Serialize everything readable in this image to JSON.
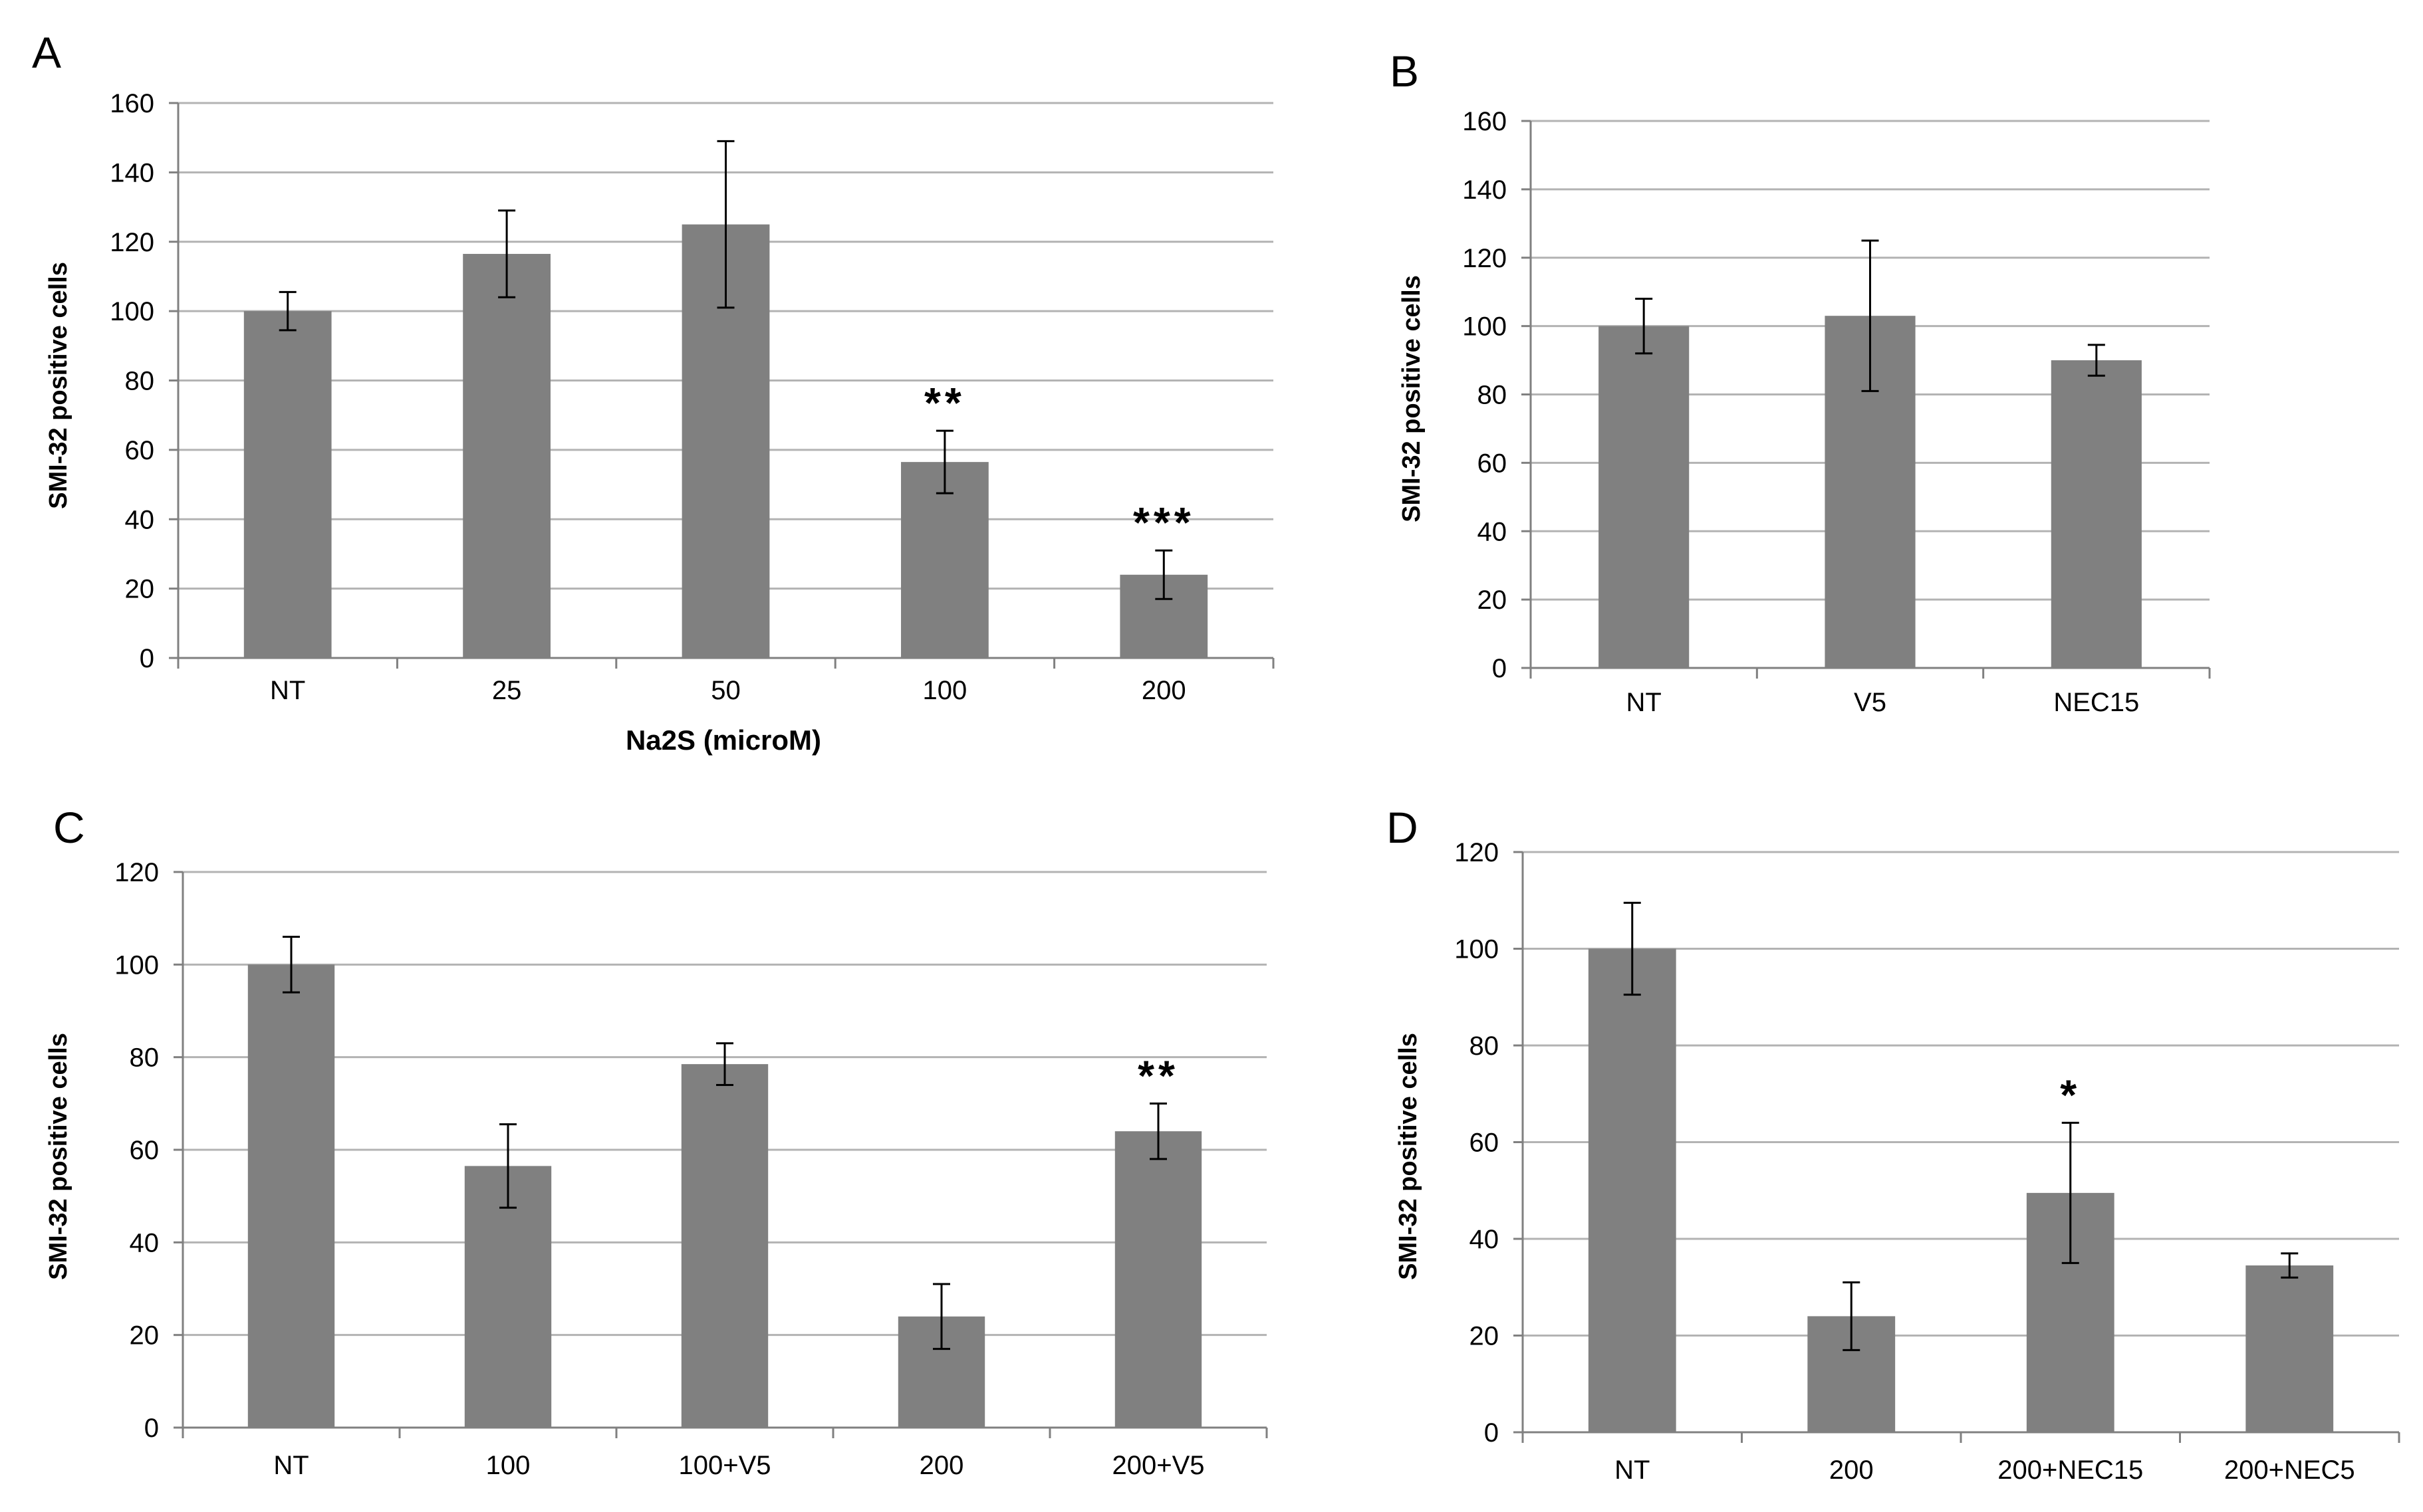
{
  "chart_data": [
    {
      "type": "bar",
      "panel": "A",
      "categories": [
        "NT",
        "25",
        "50",
        "100",
        "200"
      ],
      "values": [
        100,
        116.5,
        125,
        56.5,
        24
      ],
      "errors": [
        5.5,
        12.5,
        24,
        9,
        7
      ],
      "annotations": [
        "",
        "",
        "",
        "**",
        "***"
      ],
      "xlabel": "Na2S (microM)",
      "ylabel": "SMI-32 positive cells",
      "ylim": [
        0,
        160
      ],
      "yticks": [
        0,
        20,
        40,
        60,
        80,
        100,
        120,
        140,
        160
      ],
      "grid": true
    },
    {
      "type": "bar",
      "panel": "B",
      "categories": [
        "NT",
        "V5",
        "NEC15"
      ],
      "values": [
        100,
        103,
        90
      ],
      "errors": [
        8,
        22,
        4.5
      ],
      "annotations": [
        "",
        "",
        ""
      ],
      "xlabel": "",
      "ylabel": "SMI-32 positive cells",
      "ylim": [
        0,
        160
      ],
      "yticks": [
        0,
        20,
        40,
        60,
        80,
        100,
        120,
        140,
        160
      ],
      "grid": true
    },
    {
      "type": "bar",
      "panel": "C",
      "categories": [
        "NT",
        "100",
        "100+V5",
        "200",
        "200+V5"
      ],
      "values": [
        100,
        56.5,
        78.5,
        24,
        64
      ],
      "errors": [
        6,
        9,
        4.5,
        7,
        6
      ],
      "annotations": [
        "",
        "",
        "",
        "",
        "**"
      ],
      "xlabel": "",
      "ylabel": "SMI-32 positive cells",
      "ylim": [
        0,
        120
      ],
      "yticks": [
        0,
        20,
        40,
        60,
        80,
        100,
        120
      ],
      "grid": true
    },
    {
      "type": "bar",
      "panel": "D",
      "categories": [
        "NT",
        "200",
        "200+NEC15",
        "200+NEC5"
      ],
      "values": [
        100,
        24,
        49.5,
        34.5
      ],
      "errors": [
        9.5,
        7,
        14.5,
        2.5
      ],
      "annotations": [
        "",
        "",
        "*",
        ""
      ],
      "xlabel": "",
      "ylabel": "SMI-32 positive cells",
      "ylim": [
        0,
        120
      ],
      "yticks": [
        0,
        20,
        40,
        60,
        80,
        100,
        120
      ],
      "grid": true
    }
  ],
  "colors": {
    "bar": "#808080",
    "grid": "#b3b3b3",
    "axis": "#808080",
    "errorbar": "#000000"
  }
}
